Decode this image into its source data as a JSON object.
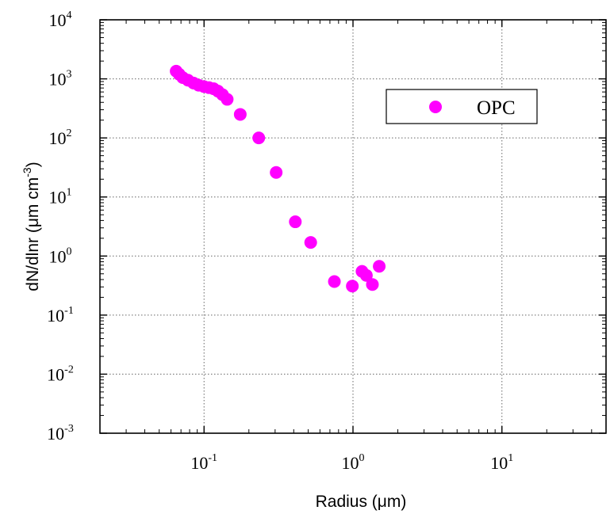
{
  "chart_data": {
    "type": "scatter",
    "xlabel": "Radius  (μm)",
    "ylabel": "dN/dlnr  (μm cm",
    "ylabel_sup": "-3",
    "ylabel_close": ")",
    "x_scale": "log",
    "y_scale": "log",
    "xlim": [
      0.02,
      50
    ],
    "ylim": [
      0.001,
      10000
    ],
    "x_ticks": [
      {
        "value": 0.1,
        "base": "10",
        "exp": "-1"
      },
      {
        "value": 1,
        "base": "10",
        "exp": "0"
      },
      {
        "value": 10,
        "base": "10",
        "exp": "1"
      }
    ],
    "y_ticks": [
      {
        "value": 0.001,
        "base": "10",
        "exp": "-3"
      },
      {
        "value": 0.01,
        "base": "10",
        "exp": "-2"
      },
      {
        "value": 0.1,
        "base": "10",
        "exp": "-1"
      },
      {
        "value": 1,
        "base": "10",
        "exp": "0"
      },
      {
        "value": 10,
        "base": "10",
        "exp": "1"
      },
      {
        "value": 100,
        "base": "10",
        "exp": "2"
      },
      {
        "value": 1000,
        "base": "10",
        "exp": "3"
      },
      {
        "value": 10000,
        "base": "10",
        "exp": "4"
      }
    ],
    "grid": true,
    "legend_position": "top-right",
    "series": [
      {
        "name": "OPC",
        "color": "#ff00ff",
        "points": [
          {
            "x": 0.065,
            "y": 1350
          },
          {
            "x": 0.068,
            "y": 1200
          },
          {
            "x": 0.072,
            "y": 1050
          },
          {
            "x": 0.078,
            "y": 950
          },
          {
            "x": 0.085,
            "y": 850
          },
          {
            "x": 0.092,
            "y": 780
          },
          {
            "x": 0.1,
            "y": 740
          },
          {
            "x": 0.108,
            "y": 710
          },
          {
            "x": 0.116,
            "y": 680
          },
          {
            "x": 0.124,
            "y": 620
          },
          {
            "x": 0.133,
            "y": 540
          },
          {
            "x": 0.143,
            "y": 450
          },
          {
            "x": 0.175,
            "y": 250
          },
          {
            "x": 0.233,
            "y": 100
          },
          {
            "x": 0.305,
            "y": 26
          },
          {
            "x": 0.41,
            "y": 3.8
          },
          {
            "x": 0.52,
            "y": 1.7
          },
          {
            "x": 0.75,
            "y": 0.37
          },
          {
            "x": 0.99,
            "y": 0.31
          },
          {
            "x": 1.15,
            "y": 0.55
          },
          {
            "x": 1.23,
            "y": 0.47
          },
          {
            "x": 1.35,
            "y": 0.33
          },
          {
            "x": 1.5,
            "y": 0.67
          }
        ]
      }
    ]
  }
}
